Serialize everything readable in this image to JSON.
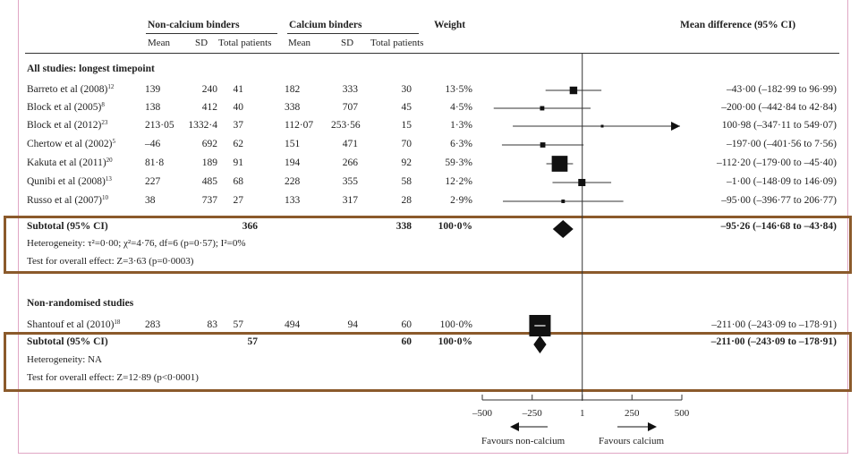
{
  "header": {
    "group_noncalcium": "Non-calcium binders",
    "group_calcium": "Calcium binders",
    "weight": "Weight",
    "mean_diff": "Mean difference (95% CI)",
    "mean": "Mean",
    "sd": "SD",
    "total": "Total patients"
  },
  "section1": {
    "title": "All studies: longest timepoint",
    "subtotal_label": "Subtotal (95% CI)",
    "subtotal_nc": "366",
    "subtotal_c": "338",
    "subtotal_weight": "100·0%",
    "subtotal_ci": "–95·26 (–146·68 to –43·84)",
    "heterogeneity": "Heterogeneity: τ²=0·00; χ²=4·76, df=6 (p=0·57); I²=0%",
    "overall": "Test for overall effect: Z=3·63 (p=0·0003)"
  },
  "section2": {
    "title": "Non-randomised studies",
    "subtotal_label": "Subtotal (95% CI)",
    "subtotal_nc": "57",
    "subtotal_c": "60",
    "subtotal_weight": "100·0%",
    "subtotal_ci": "–211·00 (–243·09 to –178·91)",
    "heterogeneity": "Heterogeneity: NA",
    "overall": "Test for overall effect: Z=12·89 (p<0·0001)"
  },
  "axis": {
    "favours_left": "Favours non-calcium",
    "favours_right": "Favours calcium"
  },
  "chart_data": {
    "type": "forest",
    "xlim": [
      -500,
      500
    ],
    "tick_labels": [
      "–500",
      "–250",
      "1",
      "250",
      "500"
    ],
    "tick_values": [
      -500,
      -250,
      1,
      250,
      500
    ],
    "studies": [
      {
        "name": "Barreto et al (2008)",
        "ref": "12",
        "nc_mean": "139",
        "nc_sd": "240",
        "nc_n": "41",
        "c_mean": "182",
        "c_sd": "333",
        "c_n": "30",
        "weight": "13·5%",
        "ci_text": "–43·00 (–182·99 to 96·99)",
        "md": -43.0,
        "lo": -182.99,
        "hi": 96.99,
        "w": 13.5,
        "section": 1
      },
      {
        "name": "Block et al (2005)",
        "ref": "8",
        "nc_mean": "138",
        "nc_sd": "412",
        "nc_n": "40",
        "c_mean": "338",
        "c_sd": "707",
        "c_n": "45",
        "weight": "4·5%",
        "ci_text": "–200·00 (–442·84 to 42·84)",
        "md": -200.0,
        "lo": -442.84,
        "hi": 42.84,
        "w": 4.5,
        "section": 1
      },
      {
        "name": "Block et al (2012)",
        "ref": "23",
        "nc_mean": "213·05",
        "nc_sd": "1332·4",
        "nc_n": "37",
        "c_mean": "112·07",
        "c_sd": "253·56",
        "c_n": "15",
        "weight": "1·3%",
        "ci_text": "100·98 (–347·11 to 549·07)",
        "md": 100.98,
        "lo": -347.11,
        "hi": 549.07,
        "w": 1.3,
        "section": 1
      },
      {
        "name": "Chertow et al (2002)",
        "ref": "5",
        "nc_mean": "–46",
        "nc_sd": "692",
        "nc_n": "62",
        "c_mean": "151",
        "c_sd": "471",
        "c_n": "70",
        "weight": "6·3%",
        "ci_text": "–197·00 (–401·56 to 7·56)",
        "md": -197.0,
        "lo": -401.56,
        "hi": 7.56,
        "w": 6.3,
        "section": 1
      },
      {
        "name": "Kakuta et al (2011)",
        "ref": "20",
        "nc_mean": "81·8",
        "nc_sd": "189",
        "nc_n": "91",
        "c_mean": "194",
        "c_sd": "266",
        "c_n": "92",
        "weight": "59·3%",
        "ci_text": "–112·20 (–179·00 to –45·40)",
        "md": -112.2,
        "lo": -179.0,
        "hi": -45.4,
        "w": 59.3,
        "section": 1
      },
      {
        "name": "Qunibi et al (2008)",
        "ref": "13",
        "nc_mean": "227",
        "nc_sd": "485",
        "nc_n": "68",
        "c_mean": "228",
        "c_sd": "355",
        "c_n": "58",
        "weight": "12·2%",
        "ci_text": "–1·00 (–148·09 to 146·09)",
        "md": -1.0,
        "lo": -148.09,
        "hi": 146.09,
        "w": 12.2,
        "section": 1
      },
      {
        "name": "Russo et al (2007)",
        "ref": "10",
        "nc_mean": "38",
        "nc_sd": "737",
        "nc_n": "27",
        "c_mean": "133",
        "c_sd": "317",
        "c_n": "28",
        "weight": "2·9%",
        "ci_text": "–95·00 (–396·77 to 206·77)",
        "md": -95.0,
        "lo": -396.77,
        "hi": 206.77,
        "w": 2.9,
        "section": 1
      },
      {
        "name": "Shantouf et al (2010)",
        "ref": "18",
        "nc_mean": "283",
        "nc_sd": "83",
        "nc_n": "57",
        "c_mean": "494",
        "c_sd": "94",
        "c_n": "60",
        "weight": "100·0%",
        "ci_text": "–211·00 (–243·09 to –178·91)",
        "md": -211.0,
        "lo": -243.09,
        "hi": -178.91,
        "w": 100.0,
        "section": 2
      }
    ],
    "subtotals": [
      {
        "md": -95.26,
        "lo": -146.68,
        "hi": -43.84,
        "section": 1
      },
      {
        "md": -211.0,
        "lo": -243.09,
        "hi": -178.91,
        "section": 2
      }
    ]
  }
}
